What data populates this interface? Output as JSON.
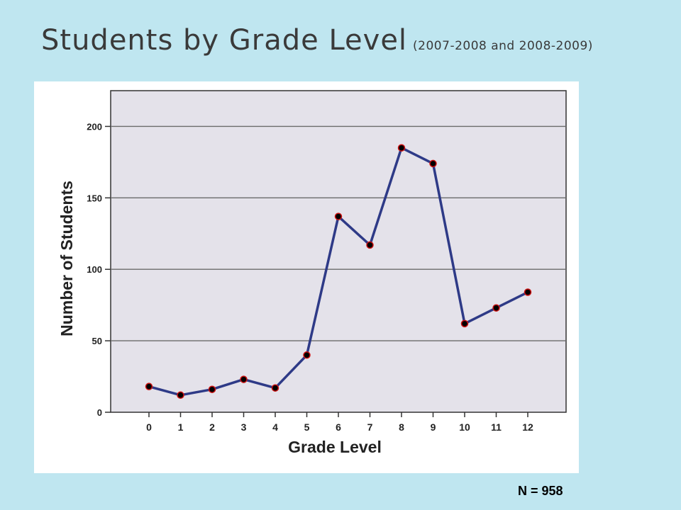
{
  "title": {
    "main": "Students by Grade Level",
    "sub": "(2007-2008 and 2008-2009)"
  },
  "footnote": "N = 958",
  "chart_data": {
    "type": "line",
    "xlabel": "Grade Level",
    "ylabel": "Number of Students",
    "categories": [
      "0",
      "1",
      "2",
      "3",
      "4",
      "5",
      "6",
      "7",
      "8",
      "9",
      "10",
      "11",
      "12"
    ],
    "values": [
      18,
      12,
      16,
      23,
      17,
      40,
      137,
      117,
      185,
      174,
      62,
      73,
      84
    ],
    "ylim": [
      0,
      225
    ],
    "yticks": [
      0,
      50,
      100,
      150,
      200
    ],
    "grid": true,
    "legend": "none",
    "colors": {
      "line": "#2e3a87",
      "marker_fill": "#000000",
      "marker_stroke": "#cc1111",
      "plot_bg": "#e4e2ea",
      "grid": "#6b6b6b"
    }
  }
}
